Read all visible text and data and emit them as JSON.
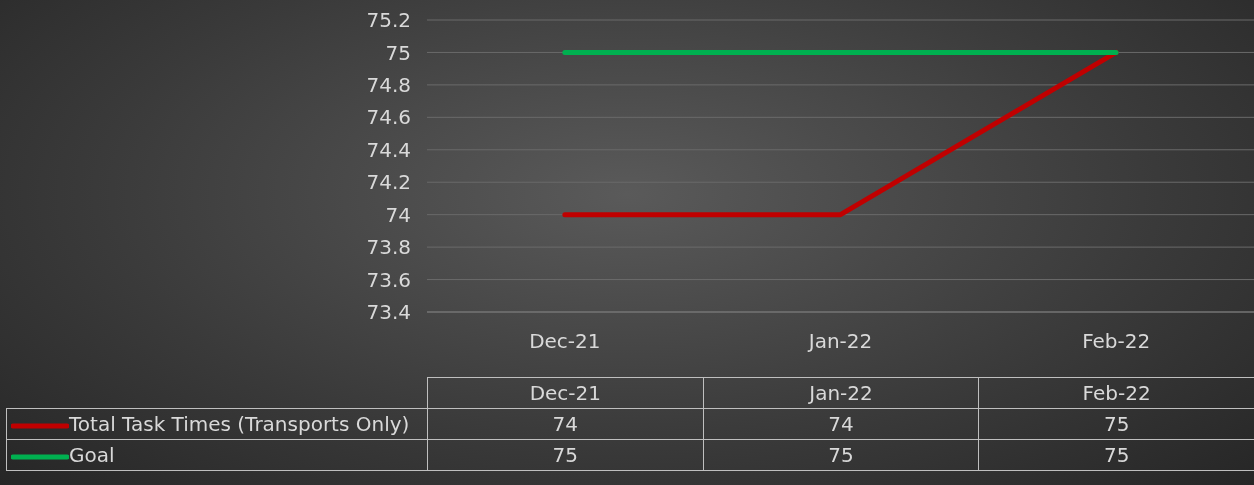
{
  "chart_data": {
    "type": "line",
    "categories": [
      "Dec-21",
      "Jan-22",
      "Feb-22"
    ],
    "series": [
      {
        "name": "Total Task Times (Transports Only)",
        "color": "#c00000",
        "values": [
          74,
          74,
          75
        ]
      },
      {
        "name": "Goal",
        "color": "#00b050",
        "values": [
          75,
          75,
          75
        ]
      }
    ],
    "ylim": [
      73.4,
      75.2
    ],
    "yticks": [
      73.4,
      73.6,
      73.8,
      74,
      74.2,
      74.4,
      74.6,
      74.8,
      75,
      75.2
    ],
    "grid": "y",
    "legend": "bottom",
    "data_labels": true,
    "marker": "none",
    "line_style": "solid"
  }
}
